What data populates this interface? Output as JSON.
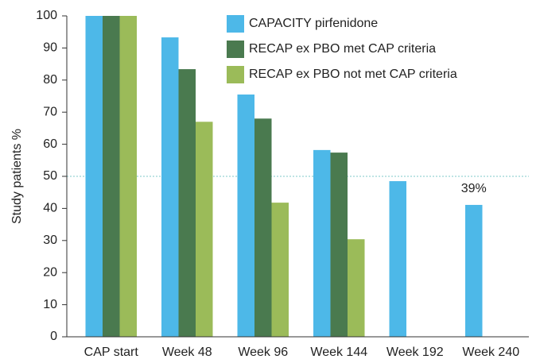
{
  "chart_data": {
    "type": "bar",
    "y_label": "Study patients %",
    "categories": [
      "CAP start",
      "Week 48",
      "Week 96",
      "Week 144",
      "Week 192",
      "Week 240"
    ],
    "series": [
      {
        "name": "CAPACITY pirfenidone",
        "color": "#4db8e8",
        "values": [
          100,
          93.3,
          75.5,
          58.2,
          48.5,
          41.1
        ]
      },
      {
        "name": "RECAP ex PBO met CAP criteria",
        "color": "#4a7a4f",
        "values": [
          100,
          83.4,
          68,
          57.4,
          null,
          null
        ]
      },
      {
        "name": "RECAP ex PBO not met CAP criteria",
        "color": "#9bbb59",
        "values": [
          100,
          67,
          41.8,
          30.4,
          null,
          null
        ]
      }
    ],
    "annotation": "39%",
    "reference_line": 50,
    "ylim": [
      0,
      100
    ],
    "yticks": [
      0,
      10,
      20,
      30,
      40,
      50,
      60,
      70,
      80,
      90,
      100
    ],
    "legend": "top"
  }
}
